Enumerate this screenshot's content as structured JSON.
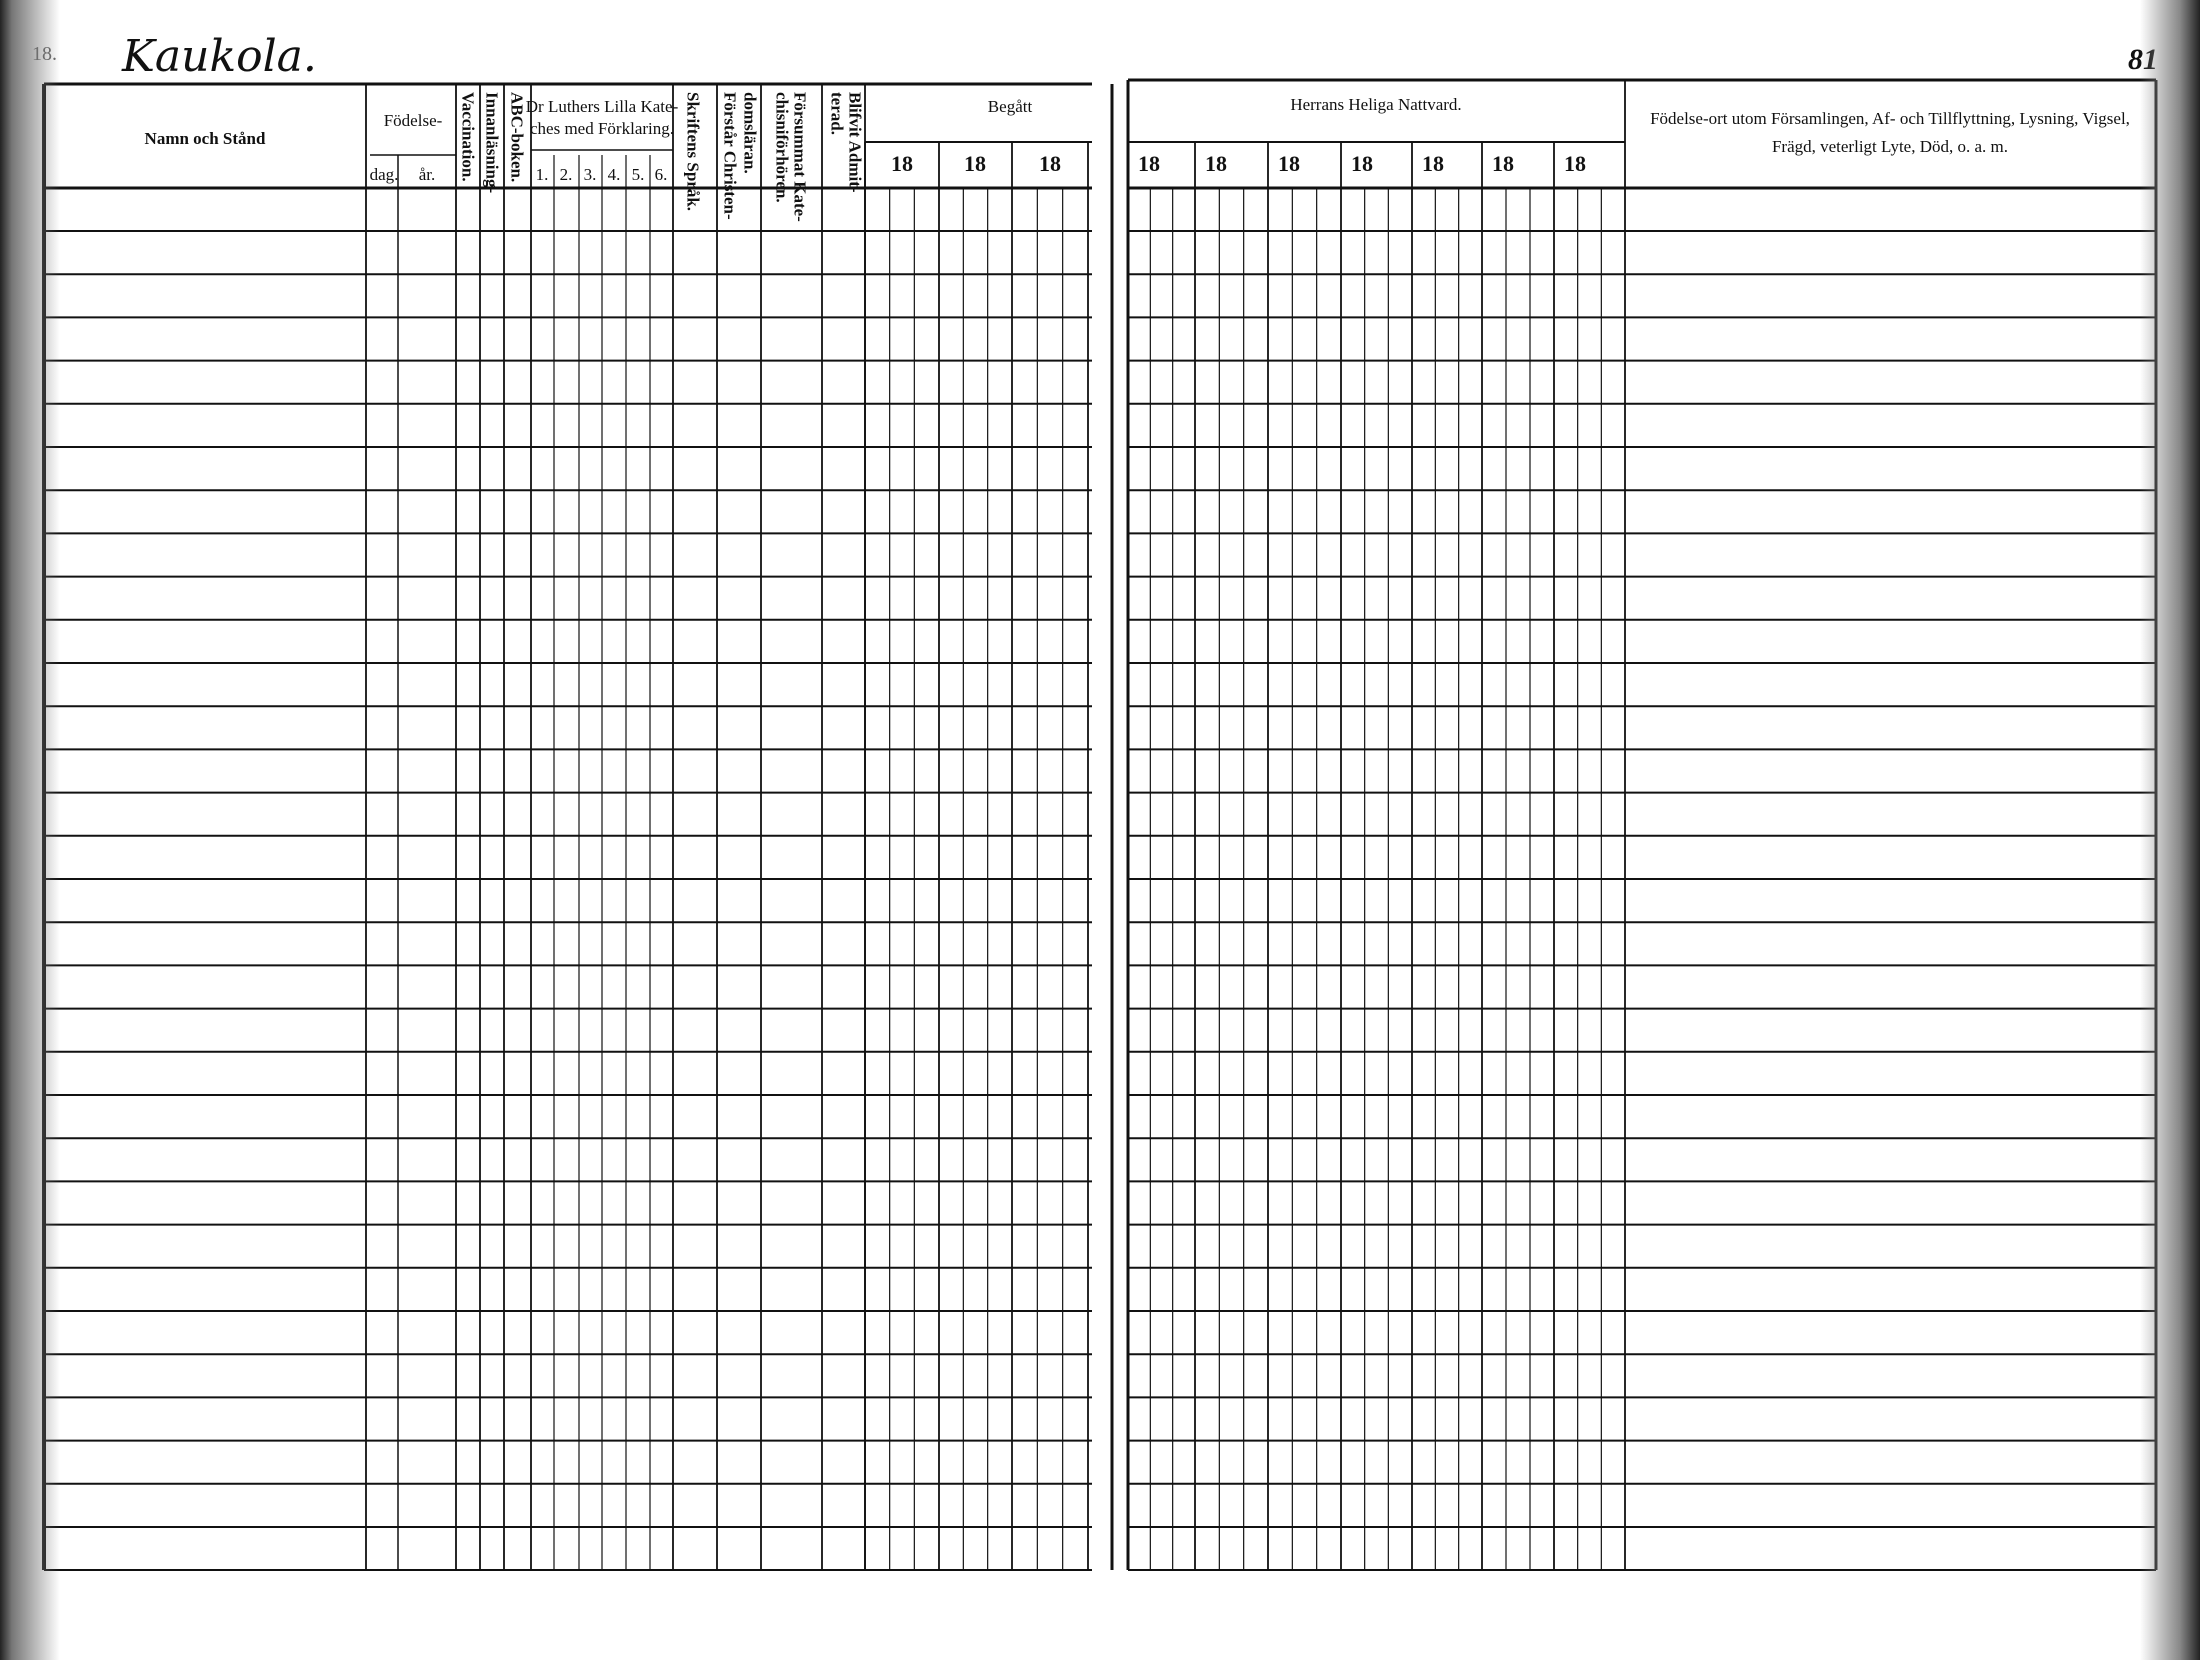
{
  "left_page": {
    "page_mark": "18.",
    "village": "Kaukola.",
    "headers": {
      "name": "Namn och Stånd",
      "birth": "Födelse-",
      "birth_day": "dag.",
      "birth_year": "år.",
      "vaccination": "Vaccination.",
      "reading": "Innanläsning-",
      "abc": "ABC-boken.",
      "luther_line1": "Dr Luthers Lilla Kate-",
      "luther_line2": "ches med Förklaring.",
      "luther_parts": [
        "1.",
        "2.",
        "3.",
        "4.",
        "5.",
        "6."
      ],
      "scripture": "Skriftens Språk.",
      "understands_line1": "Förstår Christen-",
      "understands_line2": "domsläran.",
      "missed_line1": "Försummat Kate-",
      "missed_line2": "chisniförhören.",
      "admitted_line1": "Blifvit Admit-",
      "admitted_line2": "terad.",
      "attended": "Begått",
      "years": [
        "18",
        "18",
        "18"
      ]
    }
  },
  "right_page": {
    "page_number": "81",
    "headers": {
      "communion": "Herrans Heliga Nattvard.",
      "years": [
        "18",
        "18",
        "18",
        "18",
        "18",
        "18",
        "18"
      ],
      "remarks_line1": "Födelse-ort utom Församlingen, Af- och Tillflyttning, Lysning, Vigsel,",
      "remarks_line2": "Frägd, veterligt Lyte, Död, o. a. m."
    }
  }
}
